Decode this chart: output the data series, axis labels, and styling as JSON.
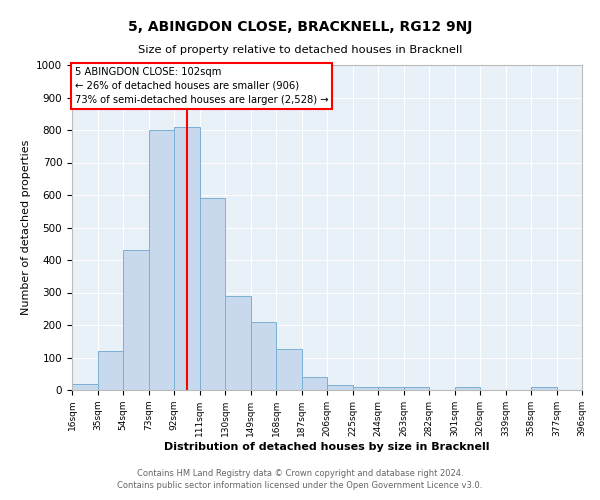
{
  "title": "5, ABINGDON CLOSE, BRACKNELL, RG12 9NJ",
  "subtitle": "Size of property relative to detached houses in Bracknell",
  "xlabel": "Distribution of detached houses by size in Bracknell",
  "ylabel": "Number of detached properties",
  "bar_color": "#c8d8ed",
  "bar_edge_color": "#7aafd4",
  "background_color": "#e8f0f8",
  "grid_color": "#ffffff",
  "bin_edges": [
    16,
    35,
    54,
    73,
    92,
    111,
    130,
    149,
    168,
    187,
    206,
    225,
    244,
    263,
    282,
    301,
    320,
    339,
    358,
    377,
    396
  ],
  "bin_labels": [
    "16sqm",
    "35sqm",
    "54sqm",
    "73sqm",
    "92sqm",
    "111sqm",
    "130sqm",
    "149sqm",
    "168sqm",
    "187sqm",
    "206sqm",
    "225sqm",
    "244sqm",
    "263sqm",
    "282sqm",
    "301sqm",
    "320sqm",
    "339sqm",
    "358sqm",
    "377sqm",
    "396sqm"
  ],
  "counts": [
    20,
    120,
    430,
    800,
    810,
    590,
    290,
    210,
    125,
    40,
    15,
    10,
    10,
    10,
    0,
    10,
    0,
    0,
    10,
    0
  ],
  "red_line_x": 102,
  "ylim": [
    0,
    1000
  ],
  "yticks": [
    0,
    100,
    200,
    300,
    400,
    500,
    600,
    700,
    800,
    900,
    1000
  ],
  "annotation_title": "5 ABINGDON CLOSE: 102sqm",
  "annotation_line1": "← 26% of detached houses are smaller (906)",
  "annotation_line2": "73% of semi-detached houses are larger (2,528) →",
  "footer1": "Contains HM Land Registry data © Crown copyright and database right 2024.",
  "footer2": "Contains public sector information licensed under the Open Government Licence v3.0."
}
